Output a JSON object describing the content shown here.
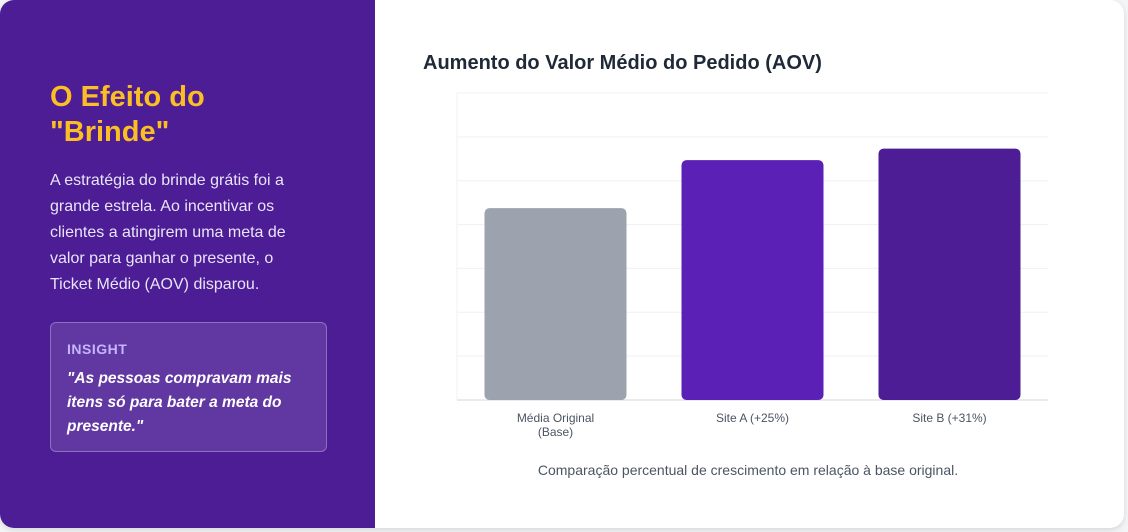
{
  "sidebar": {
    "title": "O Efeito do \"Brinde\"",
    "description": "A estratégia do brinde grátis foi a grande estrela. Ao incentivar os clientes a atingirem uma meta de valor para ganhar o presente, o Ticket Médio (AOV) disparou.",
    "insight_label": "INSIGHT",
    "insight_quote": "\"As pessoas compravam mais itens só para bater a meta do presente.\""
  },
  "chart_data": {
    "type": "bar",
    "title": "Aumento do Valor Médio do Pedido (AOV)",
    "categories": [
      [
        "Média Original",
        "(Base)"
      ],
      [
        "Site A (+25%)"
      ],
      [
        "Site B (+31%)"
      ]
    ],
    "values": [
      100,
      125,
      131
    ],
    "ylim": [
      0,
      160
    ],
    "grid": true,
    "colors": [
      "#9ca3af",
      "#5b21b6",
      "#4c1d95"
    ],
    "caption": "Comparação percentual de crescimento em relação à base original."
  }
}
